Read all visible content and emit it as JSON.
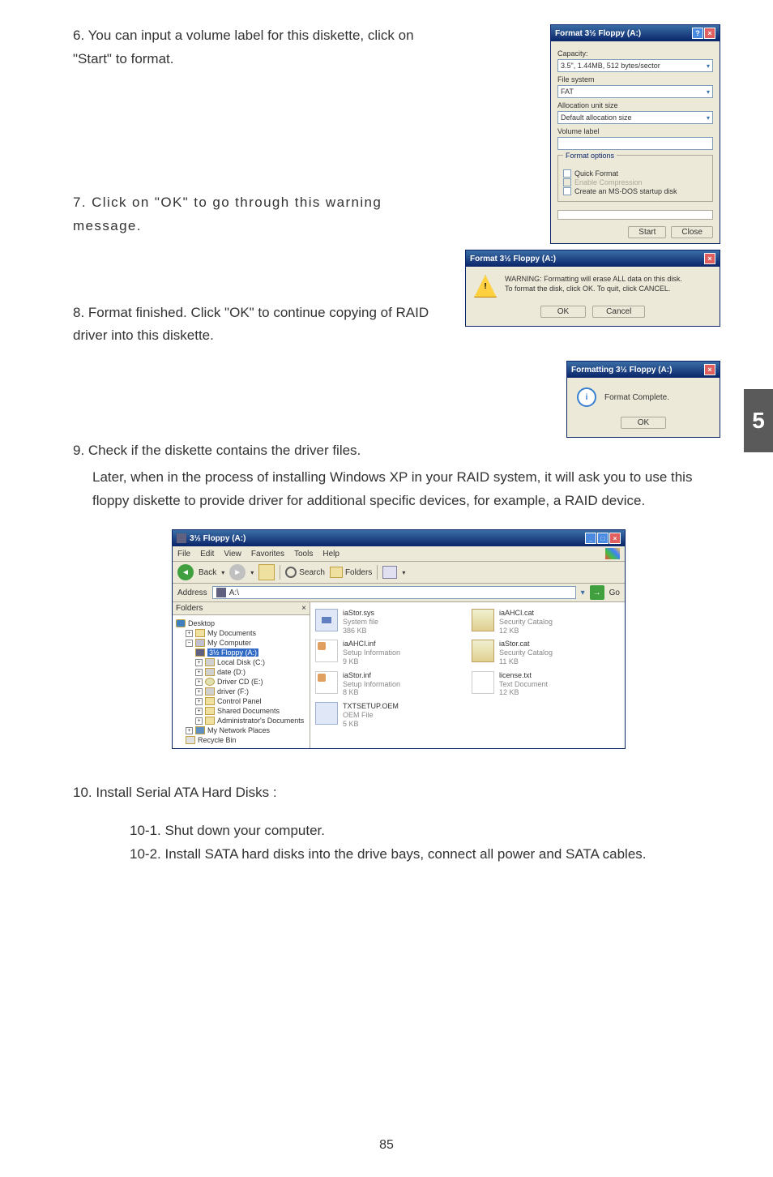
{
  "steps": {
    "s6": "6. You can input a volume label for this diskette, click on \"Start\" to format.",
    "s7": "7. Click on \"OK\" to go through this warning message.",
    "s8": "8. Format finished. Click \"OK\" to continue copying of RAID driver into this diskette.",
    "s9a": "9. Check if the diskette contains the driver files.",
    "s9b": "Later, when in the process of installing Windows XP in your RAID system, it will ask you to use this floppy diskette to provide driver for additional specific devices, for example, a RAID device.",
    "s10": "10. Install Serial ATA Hard Disks :",
    "s10_1": "10-1. Shut down your computer.",
    "s10_2": "10-2. Install SATA hard disks into the drive bays, connect all power and SATA cables."
  },
  "formatDialog": {
    "title": "Format 3½ Floppy (A:)",
    "labels": {
      "capacity": "Capacity:",
      "capacityVal": "3.5\", 1.44MB, 512 bytes/sector",
      "fs": "File system",
      "fsVal": "FAT",
      "alloc": "Allocation unit size",
      "allocVal": "Default allocation size",
      "volLabel": "Volume label",
      "options": "Format options",
      "quick": "Quick Format",
      "compress": "Enable Compression",
      "msdos": "Create an MS-DOS startup disk"
    },
    "buttons": {
      "start": "Start",
      "close": "Close"
    }
  },
  "warnDialog": {
    "title": "Format 3½ Floppy (A:)",
    "line1": "WARNING: Formatting will erase ALL data on this disk.",
    "line2": "To format the disk, click OK. To quit, click CANCEL.",
    "ok": "OK",
    "cancel": "Cancel"
  },
  "doneDialog": {
    "title": "Formatting 3½ Floppy (A:)",
    "msg": "Format Complete.",
    "ok": "OK"
  },
  "explorer": {
    "title": "3½ Floppy (A:)",
    "menu": [
      "File",
      "Edit",
      "View",
      "Favorites",
      "Tools",
      "Help"
    ],
    "toolbar": {
      "back": "Back",
      "search": "Search",
      "folders": "Folders"
    },
    "addressLabel": "Address",
    "addressVal": "A:\\",
    "go": "Go",
    "treeHeader": "Folders",
    "tree": {
      "desktop": "Desktop",
      "mydocs": "My Documents",
      "mycomp": "My Computer",
      "floppy": "3½ Floppy (A:)",
      "diskC": "Local Disk (C:)",
      "diskD": "date (D:)",
      "driverCD": "Driver CD (E:)",
      "driverF": "driver (F:)",
      "cp": "Control Panel",
      "shared": "Shared Documents",
      "admin": "Administrator's Documents",
      "netplaces": "My Network Places",
      "recycle": "Recycle Bin"
    },
    "files": [
      {
        "name": "iaStor.sys",
        "meta1": "System file",
        "meta2": "386 KB",
        "ico": "sys"
      },
      {
        "name": "iaAHCI.cat",
        "meta1": "Security Catalog",
        "meta2": "12 KB",
        "ico": "cat"
      },
      {
        "name": "iaAHCI.inf",
        "meta1": "Setup Information",
        "meta2": "9 KB",
        "ico": "inf"
      },
      {
        "name": "iaStor.cat",
        "meta1": "Security Catalog",
        "meta2": "11 KB",
        "ico": "cat"
      },
      {
        "name": "iaStor.inf",
        "meta1": "Setup Information",
        "meta2": "8 KB",
        "ico": "inf"
      },
      {
        "name": "license.txt",
        "meta1": "Text Document",
        "meta2": "12 KB",
        "ico": "txt"
      },
      {
        "name": "TXTSETUP.OEM",
        "meta1": "OEM File",
        "meta2": "5 KB",
        "ico": "oem"
      }
    ]
  },
  "sideTab": "5",
  "pageNum": "85"
}
